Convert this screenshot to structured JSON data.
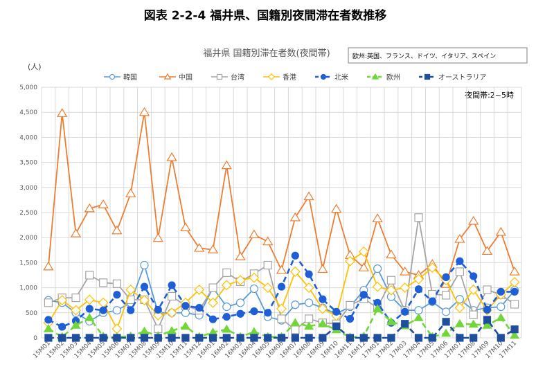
{
  "figure_title": "図表 2-2-4 福井県、国籍別夜間滞在者数推移",
  "note_box": "欧州:英国、フランス、ドイツ、イタリア、スペイン",
  "annotation": "夜間帯:2~5時",
  "colors": {
    "韓国": "#5B9BD5",
    "中国": "#ED7D31",
    "台湾": "#A5A5A5",
    "香港": "#FFC000",
    "北米": "#1F5FD6",
    "欧州": "#70D63A",
    "オーストラリア": "#1F4E9E",
    "grid": "#D9D9D9"
  },
  "chart_data": {
    "type": "line",
    "title": "福井県 国籍別滞在者数(夜間帯)",
    "ylabel": "(人)",
    "xlabel": "",
    "ylim": [
      0,
      5000
    ],
    "yticks": [
      "0",
      "500",
      "1,000",
      "1,500",
      "2,000",
      "2,500",
      "3,000",
      "3,500",
      "4,000",
      "4,500",
      "5,000"
    ],
    "grid": true,
    "legend_position": "top",
    "categories": [
      "15M01",
      "15M02",
      "15M03",
      "15M04",
      "15M05",
      "15M06",
      "15M07",
      "15M08",
      "15M09",
      "15M10",
      "15M11",
      "15M12",
      "16M01",
      "16M02",
      "16M03",
      "16M04",
      "16M05",
      "16M06",
      "16M07",
      "16M08",
      "16M09",
      "16M10",
      "16M11",
      "16M12",
      "17M01",
      "17M02",
      "17M03",
      "17M04",
      "17M05",
      "17M06",
      "17M07",
      "17M08",
      "17M09",
      "17M10",
      "17M11"
    ],
    "series": [
      {
        "name": "韓国",
        "marker": "circle-open",
        "dash": "solid",
        "values": [
          750,
          700,
          500,
          330,
          500,
          550,
          700,
          1450,
          500,
          500,
          500,
          450,
          1000,
          620,
          700,
          980,
          420,
          350,
          660,
          700,
          600,
          480,
          620,
          950,
          1380,
          820,
          550,
          550,
          720,
          520,
          770,
          550,
          600,
          620,
          950
        ]
      },
      {
        "name": "中国",
        "marker": "triangle-open",
        "dash": "solid",
        "values": [
          1420,
          4480,
          2080,
          2580,
          2660,
          2140,
          2880,
          4500,
          1990,
          3600,
          2200,
          1790,
          1760,
          3440,
          1620,
          2060,
          1920,
          1350,
          2400,
          2820,
          1370,
          2570,
          1650,
          1400,
          2380,
          1660,
          1320,
          1250,
          1470,
          1070,
          1970,
          2330,
          1730,
          2110,
          1320
        ]
      },
      {
        "name": "台湾",
        "marker": "square-open",
        "dash": "solid",
        "values": [
          700,
          800,
          800,
          1250,
          1100,
          1080,
          760,
          760,
          180,
          830,
          640,
          550,
          1000,
          1300,
          1120,
          1280,
          1450,
          380,
          160,
          380,
          300,
          280,
          650,
          780,
          600,
          1150,
          540,
          2400,
          870,
          850,
          1320,
          460,
          960,
          860,
          670
        ]
      },
      {
        "name": "香港",
        "marker": "diamond-open",
        "dash": "solid",
        "values": [
          300,
          750,
          550,
          760,
          700,
          180,
          960,
          750,
          450,
          500,
          700,
          960,
          700,
          1050,
          1150,
          1200,
          1000,
          580,
          1320,
          1000,
          580,
          440,
          1530,
          1720,
          1020,
          950,
          1000,
          1170,
          1400,
          1150,
          600,
          960,
          550,
          860,
          1110
        ]
      },
      {
        "name": "北米",
        "marker": "circle-filled",
        "dash": "dashed",
        "values": [
          360,
          220,
          340,
          580,
          550,
          860,
          550,
          1020,
          560,
          1050,
          640,
          600,
          370,
          420,
          480,
          530,
          500,
          1020,
          1640,
          1270,
          770,
          520,
          380,
          860,
          700,
          300,
          520,
          970,
          730,
          1210,
          1530,
          1230,
          560,
          920,
          920
        ]
      },
      {
        "name": "欧州",
        "marker": "triangle-filled",
        "dash": "dashed",
        "values": [
          180,
          20,
          250,
          400,
          30,
          20,
          30,
          130,
          40,
          140,
          230,
          20,
          110,
          170,
          20,
          120,
          20,
          20,
          300,
          230,
          280,
          160,
          10,
          30,
          580,
          320,
          240,
          400,
          20,
          90,
          280,
          270,
          250,
          400,
          50
        ]
      },
      {
        "name": "オーストラリア",
        "marker": "square-filled",
        "dash": "dashed",
        "values": [
          0,
          0,
          0,
          0,
          0,
          0,
          0,
          0,
          0,
          0,
          0,
          0,
          0,
          0,
          0,
          0,
          0,
          0,
          0,
          0,
          0,
          230,
          0,
          0,
          0,
          0,
          280,
          0,
          0,
          320,
          0,
          0,
          360,
          0,
          170
        ]
      }
    ]
  }
}
